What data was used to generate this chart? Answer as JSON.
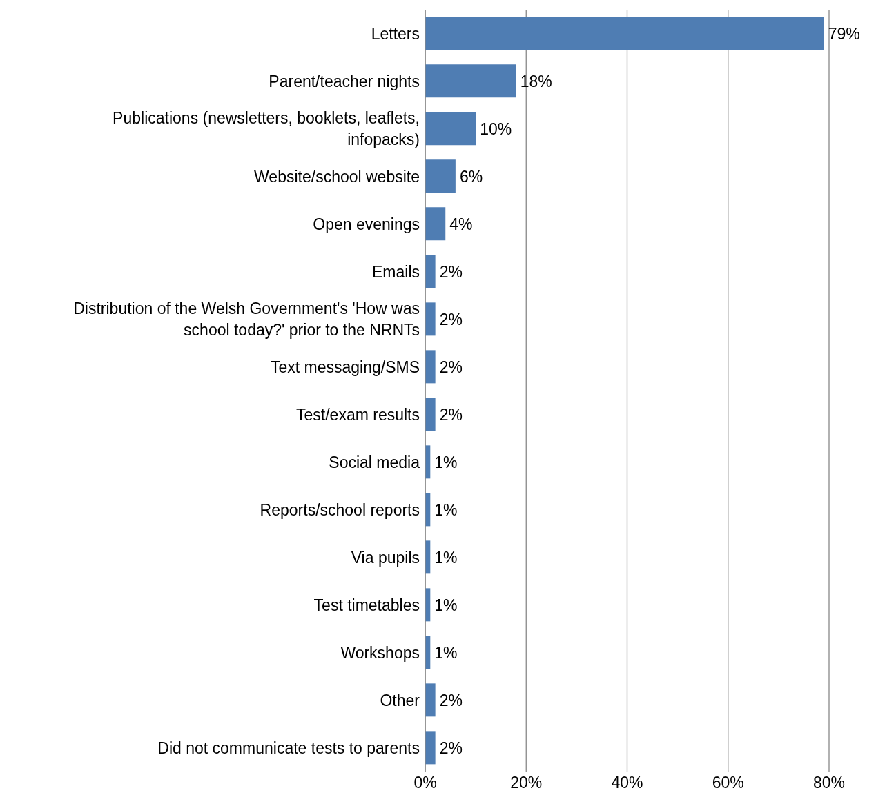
{
  "chart_data": {
    "type": "bar",
    "orientation": "horizontal",
    "categories": [
      "Letters",
      "Parent/teacher nights",
      "Publications (newsletters, booklets, leaflets, infopacks)",
      "Website/school website",
      "Open evenings",
      "Emails",
      "Distribution of the Welsh Government's 'How was school today?' prior to the NRNTs",
      "Text messaging/SMS",
      "Test/exam results",
      "Social media",
      "Reports/school reports",
      "Via pupils",
      "Test timetables",
      "Workshops",
      "Other",
      "Did not communicate tests to parents"
    ],
    "values": [
      79,
      18,
      10,
      6,
      4,
      2,
      2,
      2,
      2,
      1,
      1,
      1,
      1,
      1,
      2,
      2
    ],
    "value_labels": [
      "79%",
      "18%",
      "10%",
      "6%",
      "4%",
      "2%",
      "2%",
      "2%",
      "2%",
      "1%",
      "1%",
      "1%",
      "1%",
      "1%",
      "2%",
      "2%"
    ],
    "color": "#4f7db3",
    "xlim": [
      0,
      80
    ],
    "xticks": [
      {
        "value": 0,
        "label": "0%"
      },
      {
        "value": 20,
        "label": "20%"
      },
      {
        "value": 40,
        "label": "40%"
      },
      {
        "value": 60,
        "label": "60%"
      },
      {
        "value": 80,
        "label": "80%"
      }
    ],
    "grid": "x"
  }
}
